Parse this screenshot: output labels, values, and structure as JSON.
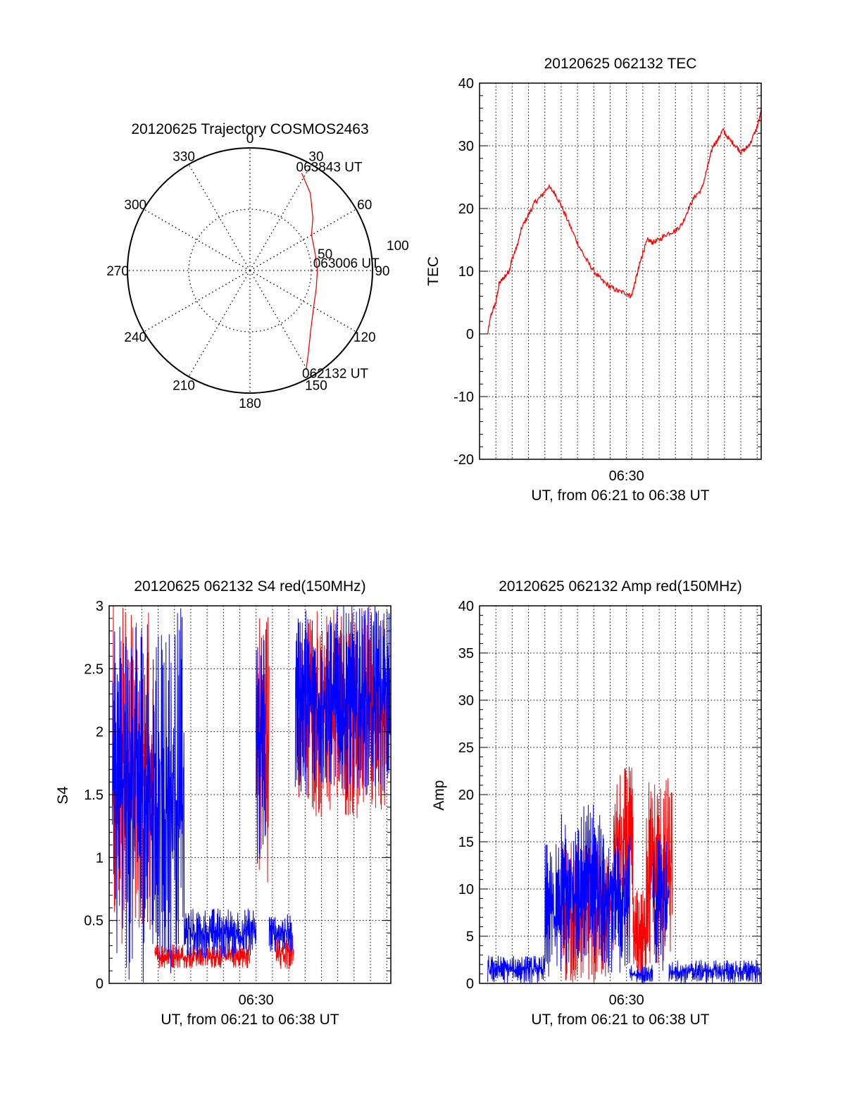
{
  "chart_data": [
    {
      "id": "trajectory",
      "type": "polar",
      "title": "20120625 Trajectory COSMOS2463",
      "angle_labels": [
        "0",
        "30",
        "60",
        "90",
        "120",
        "150",
        "180",
        "210",
        "240",
        "270",
        "300",
        "330"
      ],
      "radius_labels": [
        "50",
        "100"
      ],
      "r_max": 100,
      "series": [
        {
          "color": "#ff0000",
          "points": [
            [
              28,
              90
            ],
            [
              38,
              80
            ],
            [
              50,
              67
            ],
            [
              60,
              58
            ],
            [
              75,
              55
            ],
            [
              90,
              55
            ],
            [
              105,
              56
            ],
            [
              120,
              60
            ],
            [
              135,
              70
            ],
            [
              145,
              83
            ],
            [
              150,
              92
            ]
          ]
        }
      ],
      "annotations": [
        {
          "text": "063843 UT",
          "az": 28,
          "r": 90
        },
        {
          "text": "063006 UT",
          "az": 90,
          "r": 55
        },
        {
          "text": "062132 UT",
          "az": 150,
          "r": 92
        }
      ]
    },
    {
      "id": "tec",
      "type": "line",
      "title": "20120625 062132 TEC",
      "ylabel": "TEC",
      "xlabel": "UT, from 06:21 to 06:38 UT",
      "ylim": [
        -20,
        40
      ],
      "yticks": [
        -20,
        -10,
        0,
        10,
        20,
        30,
        40
      ],
      "xlim": [
        21.0,
        38.25
      ],
      "xticks": [
        {
          "value": 30,
          "label": "06:30"
        }
      ],
      "grid": true,
      "series": [
        {
          "color": "#ff0000",
          "points": [
            [
              21.5,
              0
            ],
            [
              21.7,
              3
            ],
            [
              22.0,
              5
            ],
            [
              22.2,
              8
            ],
            [
              22.5,
              9
            ],
            [
              22.8,
              10
            ],
            [
              23.0,
              12
            ],
            [
              23.3,
              14
            ],
            [
              23.6,
              17
            ],
            [
              24.0,
              19
            ],
            [
              24.4,
              21
            ],
            [
              24.8,
              22
            ],
            [
              25.2,
              23.5
            ],
            [
              25.6,
              22.5
            ],
            [
              26.0,
              20.5
            ],
            [
              26.5,
              17.5
            ],
            [
              27.0,
              14.5
            ],
            [
              27.5,
              12
            ],
            [
              28.0,
              10
            ],
            [
              28.5,
              8.5
            ],
            [
              29.0,
              7.5
            ],
            [
              29.5,
              6.8
            ],
            [
              30.0,
              6.5
            ],
            [
              30.3,
              6
            ],
            [
              30.5,
              8
            ],
            [
              30.8,
              11
            ],
            [
              31.0,
              13
            ],
            [
              31.3,
              15
            ],
            [
              31.6,
              14.6
            ],
            [
              32.0,
              15
            ],
            [
              32.5,
              16
            ],
            [
              33.0,
              16.5
            ],
            [
              33.4,
              17.5
            ],
            [
              33.8,
              20
            ],
            [
              34.2,
              22
            ],
            [
              34.6,
              23
            ],
            [
              35.0,
              27
            ],
            [
              35.3,
              30
            ],
            [
              35.6,
              31
            ],
            [
              35.9,
              32.5
            ],
            [
              36.3,
              31
            ],
            [
              36.7,
              30
            ],
            [
              37.0,
              29
            ],
            [
              37.3,
              29.5
            ],
            [
              37.6,
              30.5
            ],
            [
              38.0,
              33
            ],
            [
              38.25,
              35.5
            ]
          ]
        }
      ]
    },
    {
      "id": "s4",
      "type": "line",
      "title": "20120625 062132 S4 red(150MHz)",
      "ylabel": "S4",
      "xlabel": "UT, from 06:21 to 06:38 UT",
      "ylim": [
        0,
        3
      ],
      "yticks": [
        0,
        0.5,
        1,
        1.5,
        2,
        2.5,
        3
      ],
      "xlim": [
        21.0,
        38.25
      ],
      "xticks": [
        {
          "value": 30,
          "label": "06:30"
        }
      ],
      "grid": true,
      "series": [
        {
          "color": "#ff0000",
          "segments": [
            {
              "x": [
                21.2,
                23.8
              ],
              "lo": 0.3,
              "hi": 3.0
            },
            {
              "x": [
                23.8,
                29.6
              ],
              "lo": 0.12,
              "hi": 0.32
            },
            {
              "x": [
                30.0,
                30.8
              ],
              "lo": 0.8,
              "hi": 3.0
            },
            {
              "x": [
                31.2,
                32.3
              ],
              "lo": 0.1,
              "hi": 0.4
            },
            {
              "x": [
                32.5,
                38.2
              ],
              "lo": 1.3,
              "hi": 3.0
            }
          ]
        },
        {
          "color": "#0000ff",
          "segments": [
            {
              "x": [
                21.2,
                25.6
              ],
              "lo": 0.0,
              "hi": 3.0
            },
            {
              "x": [
                25.6,
                30.0
              ],
              "lo": 0.2,
              "hi": 0.6
            },
            {
              "x": [
                30.0,
                30.6
              ],
              "lo": 0.8,
              "hi": 3.0
            },
            {
              "x": [
                30.8,
                32.2
              ],
              "lo": 0.25,
              "hi": 0.55
            },
            {
              "x": [
                32.4,
                38.2
              ],
              "lo": 1.5,
              "hi": 3.0
            }
          ]
        }
      ]
    },
    {
      "id": "amp",
      "type": "line",
      "title": "20120625 062132 Amp red(150MHz)",
      "ylabel": "Amp",
      "xlabel": "UT, from 06:21 to 06:38 UT",
      "ylim": [
        0,
        40
      ],
      "yticks": [
        0,
        5,
        10,
        15,
        20,
        25,
        30,
        35,
        40
      ],
      "xlim": [
        21.0,
        38.25
      ],
      "xticks": [
        {
          "value": 30,
          "label": "06:30"
        }
      ],
      "grid": true,
      "series": [
        {
          "color": "#ff0000",
          "segments": [
            {
              "x": [
                26.0,
                29.2
              ],
              "lo": 0,
              "hi": 15
            },
            {
              "x": [
                29.2,
                30.4
              ],
              "lo": 5,
              "hi": 23
            },
            {
              "x": [
                30.4,
                31.2
              ],
              "lo": 0,
              "hi": 10
            },
            {
              "x": [
                31.2,
                32.8
              ],
              "lo": 1,
              "hi": 22
            }
          ]
        },
        {
          "color": "#0000ff",
          "segments": [
            {
              "x": [
                21.5,
                25.0
              ],
              "lo": 0,
              "hi": 3
            },
            {
              "x": [
                25.0,
                26.0
              ],
              "lo": 0,
              "hi": 15
            },
            {
              "x": [
                26.0,
                28.5
              ],
              "lo": 2,
              "hi": 19
            },
            {
              "x": [
                28.5,
                30.2
              ],
              "lo": 1,
              "hi": 16
            },
            {
              "x": [
                30.2,
                31.6
              ],
              "lo": 0,
              "hi": 2
            },
            {
              "x": [
                31.6,
                32.6
              ],
              "lo": 1,
              "hi": 16
            },
            {
              "x": [
                32.6,
                38.2
              ],
              "lo": 0,
              "hi": 2.5
            }
          ]
        }
      ]
    }
  ]
}
